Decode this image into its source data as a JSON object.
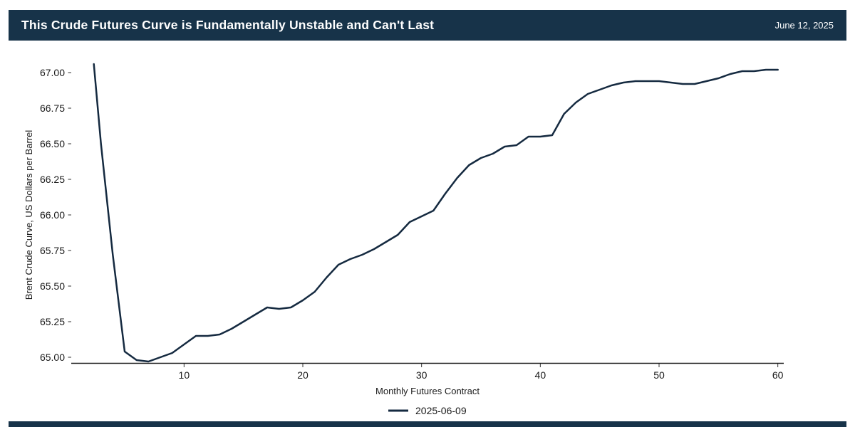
{
  "header": {
    "title": "This Crude Futures Curve is Fundamentally Unstable and Can't Last",
    "date": "June 12, 2025",
    "bg_color": "#173349",
    "text_color": "#ffffff"
  },
  "footer": {
    "bg_color": "#173349"
  },
  "chart_data": {
    "type": "line",
    "title": "This Crude Futures Curve is Fundamentally Unstable and Can't Last",
    "xlabel": "Monthly Futures Contract",
    "ylabel": "Brent Crude Curve, US Dollars per Barrel",
    "grid": false,
    "legend_position": "bottom",
    "xlim": [
      0.5,
      60.5
    ],
    "ylim": [
      64.96,
      67.085
    ],
    "x_ticks": [
      {
        "value": 10,
        "label": "10"
      },
      {
        "value": 20,
        "label": "20"
      },
      {
        "value": 30,
        "label": "30"
      },
      {
        "value": 40,
        "label": "40"
      },
      {
        "value": 50,
        "label": "50"
      },
      {
        "value": 60,
        "label": "60"
      }
    ],
    "y_ticks": [
      {
        "value": 65.0,
        "label": "65.00"
      },
      {
        "value": 65.25,
        "label": "65.25"
      },
      {
        "value": 65.5,
        "label": "65.50"
      },
      {
        "value": 65.75,
        "label": "65.75"
      },
      {
        "value": 66.0,
        "label": "66.00"
      },
      {
        "value": 66.25,
        "label": "66.25"
      },
      {
        "value": 66.5,
        "label": "66.50"
      },
      {
        "value": 66.75,
        "label": "66.75"
      },
      {
        "value": 67.0,
        "label": "67.00"
      }
    ],
    "series": [
      {
        "name": "2025-06-09",
        "color": "#152a40",
        "points": [
          [
            2.4,
            67.06
          ],
          [
            3,
            66.5
          ],
          [
            4,
            65.72
          ],
          [
            5,
            65.04
          ],
          [
            6,
            64.98
          ],
          [
            7,
            64.97
          ],
          [
            8,
            65.0
          ],
          [
            9,
            65.03
          ],
          [
            10,
            65.09
          ],
          [
            11,
            65.15
          ],
          [
            12,
            65.15
          ],
          [
            13,
            65.16
          ],
          [
            14,
            65.2
          ],
          [
            15,
            65.25
          ],
          [
            16,
            65.3
          ],
          [
            17,
            65.35
          ],
          [
            18,
            65.34
          ],
          [
            19,
            65.35
          ],
          [
            20,
            65.4
          ],
          [
            21,
            65.46
          ],
          [
            22,
            65.56
          ],
          [
            23,
            65.65
          ],
          [
            24,
            65.69
          ],
          [
            25,
            65.72
          ],
          [
            26,
            65.76
          ],
          [
            27,
            65.81
          ],
          [
            28,
            65.86
          ],
          [
            29,
            65.95
          ],
          [
            30,
            65.99
          ],
          [
            31,
            66.03
          ],
          [
            32,
            66.15
          ],
          [
            33,
            66.26
          ],
          [
            34,
            66.35
          ],
          [
            35,
            66.4
          ],
          [
            36,
            66.43
          ],
          [
            37,
            66.48
          ],
          [
            38,
            66.49
          ],
          [
            39,
            66.55
          ],
          [
            40,
            66.55
          ],
          [
            41,
            66.56
          ],
          [
            42,
            66.71
          ],
          [
            43,
            66.79
          ],
          [
            44,
            66.85
          ],
          [
            45,
            66.88
          ],
          [
            46,
            66.91
          ],
          [
            47,
            66.93
          ],
          [
            48,
            66.94
          ],
          [
            49,
            66.94
          ],
          [
            50,
            66.94
          ],
          [
            51,
            66.93
          ],
          [
            52,
            66.92
          ],
          [
            53,
            66.92
          ],
          [
            54,
            66.94
          ],
          [
            55,
            66.96
          ],
          [
            56,
            66.99
          ],
          [
            57,
            67.01
          ],
          [
            58,
            67.01
          ],
          [
            59,
            67.02
          ],
          [
            60,
            67.02
          ]
        ]
      }
    ],
    "axis_color": "#1a1a1a",
    "tick_color": "#333333"
  }
}
